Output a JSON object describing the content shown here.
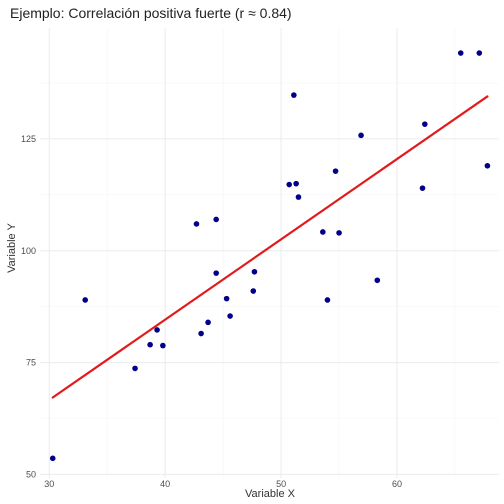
{
  "chart_data": {
    "type": "scatter",
    "title": "Ejemplo: Correlación positiva fuerte (r ≈ 0.84)",
    "xlabel": "Variable X",
    "ylabel": "Variable Y",
    "xlim": [
      29.2,
      68.8
    ],
    "ylim": [
      49.2,
      149.8
    ],
    "x_ticks": [
      30,
      40,
      50,
      60
    ],
    "y_ticks": [
      50,
      75,
      100,
      125
    ],
    "x_minor": [
      35,
      45,
      55,
      65
    ],
    "y_minor": [
      62.5,
      87.5,
      112.5,
      137.5
    ],
    "grid": true,
    "point_color": "#00008b",
    "line_color": "#e31a1c",
    "points": [
      {
        "x": 30.3,
        "y": 53.6
      },
      {
        "x": 33.1,
        "y": 89.0
      },
      {
        "x": 37.4,
        "y": 73.7
      },
      {
        "x": 38.7,
        "y": 79.0
      },
      {
        "x": 39.3,
        "y": 82.3
      },
      {
        "x": 39.8,
        "y": 78.8
      },
      {
        "x": 42.7,
        "y": 106.0
      },
      {
        "x": 43.1,
        "y": 81.5
      },
      {
        "x": 43.7,
        "y": 84.0
      },
      {
        "x": 44.4,
        "y": 107.0
      },
      {
        "x": 44.4,
        "y": 95.0
      },
      {
        "x": 45.3,
        "y": 89.3
      },
      {
        "x": 45.6,
        "y": 85.4
      },
      {
        "x": 47.6,
        "y": 91.0
      },
      {
        "x": 47.7,
        "y": 95.3
      },
      {
        "x": 50.7,
        "y": 114.8
      },
      {
        "x": 51.1,
        "y": 134.8
      },
      {
        "x": 51.3,
        "y": 115.0
      },
      {
        "x": 51.5,
        "y": 112.0
      },
      {
        "x": 53.6,
        "y": 104.2
      },
      {
        "x": 54.0,
        "y": 89.0
      },
      {
        "x": 54.7,
        "y": 117.8
      },
      {
        "x": 55.0,
        "y": 104.0
      },
      {
        "x": 56.9,
        "y": 125.8
      },
      {
        "x": 58.3,
        "y": 93.4
      },
      {
        "x": 62.2,
        "y": 114.0
      },
      {
        "x": 62.4,
        "y": 128.3
      },
      {
        "x": 65.5,
        "y": 144.2
      },
      {
        "x": 67.1,
        "y": 144.2
      },
      {
        "x": 67.8,
        "y": 119.0
      }
    ],
    "regression_line": {
      "x": [
        30.3,
        67.8
      ],
      "y": [
        67.2,
        134.5
      ]
    }
  }
}
